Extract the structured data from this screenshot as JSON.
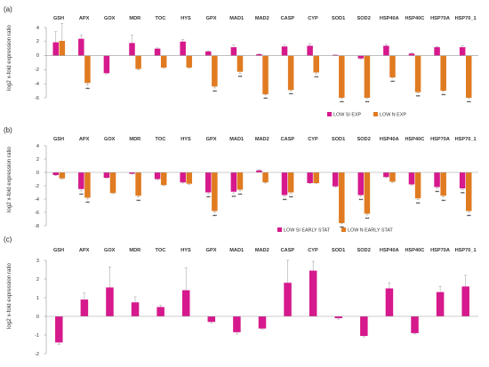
{
  "colors": {
    "low_si": "#d6198c",
    "low_n": "#e07b21",
    "axis": "#999999",
    "error_bar": "#aaaaaa"
  },
  "chart_data": [
    {
      "panel": "(a)",
      "type": "bar",
      "ylabel": "log2 x-fold expression ratio",
      "ylim": [
        -6,
        4
      ],
      "yticks": [
        "4",
        "2",
        "0",
        "-2",
        "-4",
        "-6"
      ],
      "grid": false,
      "legend_position": "bottom-right",
      "categories": [
        "GSH",
        "APX",
        "GOX",
        "MDR",
        "TOC",
        "HYS",
        "GPX",
        "MAD1",
        "MAD2",
        "CASP",
        "CYP",
        "SOD1",
        "SOD2",
        "HSP40A",
        "HSP40C",
        "HSP70A",
        "HSP70_1"
      ],
      "series": [
        {
          "name": "LOW SI EXP",
          "color_key": "low_si",
          "values": [
            1.9,
            2.4,
            -2.5,
            1.8,
            1.0,
            2.0,
            0.6,
            1.2,
            0.2,
            1.3,
            1.4,
            0.1,
            -0.4,
            1.4,
            0.3,
            1.2,
            1.2
          ],
          "errors": [
            1.5,
            0.5,
            0.1,
            1.1,
            0.1,
            0.3,
            0.1,
            0.3,
            0.05,
            0.2,
            0.3,
            0.05,
            0.1,
            0.2,
            0.1,
            0.1,
            0.2
          ]
        },
        {
          "name": "LOW N EXP",
          "color_key": "low_n",
          "values": [
            2.1,
            -3.9,
            0.0,
            -1.9,
            -1.7,
            -1.7,
            -4.4,
            -2.3,
            -5.5,
            -4.9,
            -2.4,
            -6.0,
            -6.0,
            -3.1,
            -5.2,
            -5.0,
            -6.0
          ],
          "errors": [
            2.5,
            0.3,
            0.0,
            0.1,
            0.1,
            0.1,
            0.2,
            0.2,
            0.1,
            0.1,
            0.2,
            0.1,
            0.1,
            0.1,
            0.1,
            0.1,
            0.1
          ]
        }
      ],
      "significance": [
        {
          "category": "APX",
          "series": 1,
          "label": "***"
        },
        {
          "category": "GPX",
          "series": 1,
          "label": "***"
        },
        {
          "category": "MAD1",
          "series": 1,
          "label": "***"
        },
        {
          "category": "MAD2",
          "series": 1,
          "label": "***"
        },
        {
          "category": "CASP",
          "series": 1,
          "label": "***"
        },
        {
          "category": "CYP",
          "series": 1,
          "label": "***"
        },
        {
          "category": "SOD1",
          "series": 1,
          "label": "***"
        },
        {
          "category": "SOD2",
          "series": 1,
          "label": "***"
        },
        {
          "category": "HSP40A",
          "series": 1,
          "label": "***"
        },
        {
          "category": "HSP40C",
          "series": 1,
          "label": "***"
        },
        {
          "category": "HSP70A",
          "series": 1,
          "label": "***"
        },
        {
          "category": "HSP70_1",
          "series": 1,
          "label": "***"
        }
      ]
    },
    {
      "panel": "(b)",
      "type": "bar",
      "ylabel": "log2 x-fold expression ratio",
      "ylim": [
        -8,
        4
      ],
      "yticks": [
        "4",
        "2",
        "0",
        "-2",
        "-4",
        "-6",
        "-8"
      ],
      "grid": false,
      "legend_position": "bottom-right",
      "categories": [
        "GSH",
        "APX",
        "GOX",
        "MDR",
        "TOC",
        "HYS",
        "GPX",
        "MAD1",
        "MAD2",
        "CASP",
        "CYP",
        "SOD1",
        "SOD2",
        "HSP40A",
        "HSP40C",
        "HSP70A",
        "HSP70_1"
      ],
      "series": [
        {
          "name": "LOW SI EARLY STAT",
          "color_key": "low_si",
          "values": [
            -0.4,
            -2.5,
            -0.8,
            -0.2,
            -1.0,
            -1.5,
            -3.0,
            -2.9,
            0.3,
            -3.4,
            -1.6,
            -2.1,
            -3.4,
            -0.7,
            -1.8,
            -2.2,
            -2.4
          ],
          "errors": [
            0.1,
            0.3,
            0.1,
            0.05,
            0.1,
            0.1,
            0.2,
            0.2,
            0.1,
            0.2,
            0.1,
            0.1,
            0.2,
            0.1,
            0.1,
            0.2,
            0.2
          ]
        },
        {
          "name": "LOW N EARLY STAT",
          "color_key": "low_n",
          "values": [
            -0.9,
            -3.8,
            -3.1,
            -3.5,
            -1.9,
            -1.7,
            -5.8,
            -2.6,
            -1.5,
            -3.0,
            -1.6,
            -7.6,
            -6.2,
            -1.4,
            -3.9,
            -3.5,
            -5.8
          ],
          "errors": [
            0.1,
            0.2,
            0.1,
            0.2,
            0.1,
            0.1,
            0.2,
            0.2,
            0.1,
            0.2,
            0.1,
            0.1,
            0.2,
            0.1,
            0.2,
            0.2,
            0.2
          ]
        }
      ],
      "significance": [
        {
          "category": "APX",
          "series": 0,
          "label": "***"
        },
        {
          "category": "APX",
          "series": 1,
          "label": "***"
        },
        {
          "category": "MDR",
          "series": 1,
          "label": "***"
        },
        {
          "category": "GPX",
          "series": 0,
          "label": "***"
        },
        {
          "category": "GPX",
          "series": 1,
          "label": "***"
        },
        {
          "category": "MAD1",
          "series": 0,
          "label": "***"
        },
        {
          "category": "MAD1",
          "series": 1,
          "label": "***"
        },
        {
          "category": "CASP",
          "series": 0,
          "label": "***"
        },
        {
          "category": "CASP",
          "series": 1,
          "label": "***"
        },
        {
          "category": "SOD1",
          "series": 1,
          "label": "***"
        },
        {
          "category": "SOD2",
          "series": 0,
          "label": "***"
        },
        {
          "category": "SOD2",
          "series": 1,
          "label": "***"
        },
        {
          "category": "HSP40C",
          "series": 1,
          "label": "***"
        },
        {
          "category": "HSP70A",
          "series": 0,
          "label": "***"
        },
        {
          "category": "HSP70A",
          "series": 1,
          "label": "***"
        },
        {
          "category": "HSP70_1",
          "series": 0,
          "label": "***"
        },
        {
          "category": "HSP70_1",
          "series": 1,
          "label": "***"
        }
      ]
    },
    {
      "panel": "(c)",
      "type": "bar",
      "ylabel": "log2 x-fold expression ratio",
      "ylim": [
        -2,
        3
      ],
      "yticks": [
        "3",
        "2",
        "1",
        "0",
        "-1",
        "-2"
      ],
      "grid": false,
      "categories": [
        "GSH",
        "APX",
        "GOX",
        "MDR",
        "TOC",
        "HYS",
        "GPX",
        "MAD1",
        "MAD2",
        "CASP",
        "CYP",
        "SOD1",
        "SOD2",
        "HSP40A",
        "HSP40C",
        "HSP70A",
        "HSP70_1"
      ],
      "series": [
        {
          "name": "",
          "color_key": "low_si",
          "values": [
            -1.4,
            0.9,
            1.55,
            0.75,
            0.5,
            1.4,
            -0.3,
            -0.85,
            -0.65,
            1.8,
            2.45,
            -0.1,
            -1.05,
            1.5,
            -0.9,
            1.3,
            1.6
          ],
          "errors": [
            0.1,
            0.35,
            1.1,
            0.3,
            0.1,
            1.2,
            0.05,
            0.1,
            0.05,
            1.2,
            0.5,
            0.05,
            0.05,
            0.3,
            0.05,
            0.3,
            0.6
          ]
        }
      ],
      "significance": []
    }
  ]
}
